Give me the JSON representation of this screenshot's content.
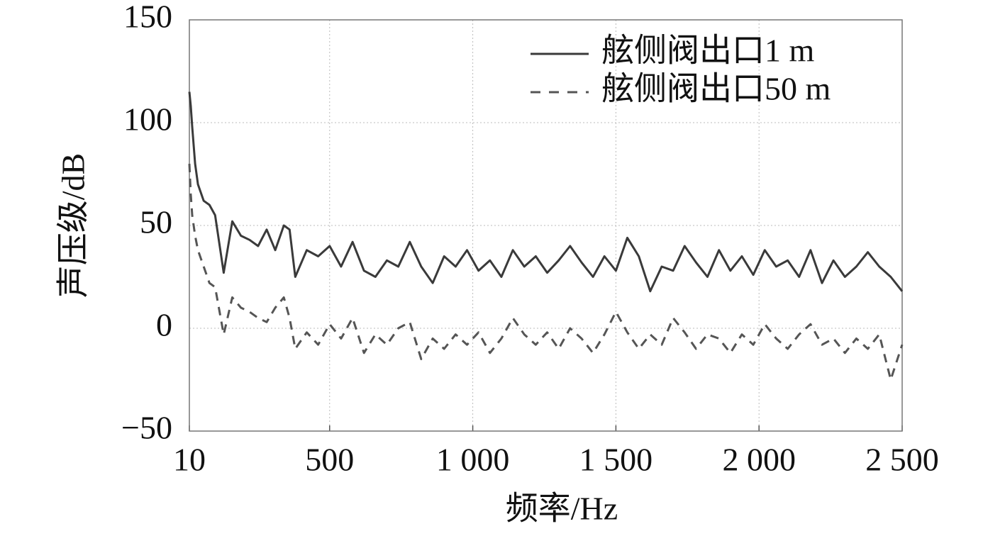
{
  "chart_data": {
    "type": "line",
    "xlabel": "频率/Hz",
    "ylabel": "声压级/dB",
    "x": [
      10,
      15,
      20,
      30,
      40,
      60,
      80,
      100,
      130,
      160,
      190,
      220,
      250,
      280,
      310,
      340,
      360,
      380,
      420,
      460,
      500,
      540,
      580,
      620,
      660,
      700,
      740,
      780,
      820,
      860,
      900,
      940,
      980,
      1020,
      1060,
      1100,
      1140,
      1180,
      1220,
      1260,
      1300,
      1340,
      1380,
      1420,
      1460,
      1500,
      1540,
      1580,
      1620,
      1660,
      1700,
      1740,
      1780,
      1820,
      1860,
      1900,
      1940,
      1980,
      2020,
      2060,
      2100,
      2140,
      2180,
      2220,
      2260,
      2300,
      2340,
      2380,
      2420,
      2460,
      2500
    ],
    "series": [
      {
        "name": "舷侧阀出口1 m",
        "color": "#3a3a3a",
        "style": "solid",
        "values": [
          115,
          108,
          98,
          80,
          70,
          62,
          60,
          55,
          27,
          52,
          45,
          43,
          40,
          48,
          38,
          50,
          48,
          25,
          38,
          35,
          40,
          30,
          42,
          28,
          25,
          33,
          30,
          42,
          30,
          22,
          35,
          30,
          38,
          28,
          33,
          25,
          38,
          30,
          35,
          27,
          33,
          40,
          32,
          25,
          35,
          28,
          44,
          35,
          18,
          30,
          28,
          40,
          32,
          25,
          38,
          28,
          35,
          26,
          38,
          30,
          33,
          25,
          38,
          22,
          33,
          25,
          30,
          37,
          30,
          25,
          18
        ]
      },
      {
        "name": "舷侧阀出口50 m",
        "color": "#555555",
        "style": "dashed",
        "values": [
          80,
          65,
          55,
          45,
          38,
          30,
          22,
          20,
          -3,
          15,
          10,
          8,
          5,
          3,
          10,
          15,
          5,
          -10,
          -2,
          -8,
          2,
          -5,
          5,
          -12,
          -3,
          -8,
          0,
          3,
          -15,
          -5,
          -10,
          -3,
          -8,
          -2,
          -12,
          -5,
          5,
          -3,
          -8,
          -2,
          -10,
          0,
          -5,
          -12,
          -3,
          8,
          -2,
          -10,
          -3,
          -8,
          5,
          -2,
          -10,
          -3,
          -5,
          -12,
          -3,
          -8,
          2,
          -5,
          -10,
          -3,
          2,
          -8,
          -5,
          -12,
          -5,
          -10,
          -3,
          -25,
          -8
        ]
      }
    ],
    "xlim": [
      10,
      2500
    ],
    "xticks": [
      10,
      500,
      {
        "value": 1000,
        "label": "1 000"
      },
      {
        "value": 1500,
        "label": "1 500"
      },
      {
        "value": 2000,
        "label": "2 000"
      },
      {
        "value": 2500,
        "label": "2 500"
      }
    ],
    "ylim": [
      -50,
      150
    ],
    "yticks": [
      {
        "value": -50,
        "label": "−50"
      },
      0,
      50,
      100,
      150
    ],
    "grid": true,
    "legend": "upper right"
  }
}
